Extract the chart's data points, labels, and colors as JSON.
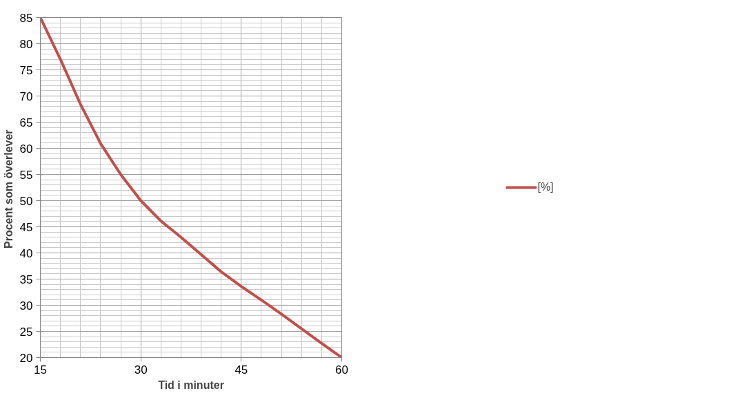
{
  "chart_data": {
    "type": "line",
    "xlabel": "Tid i minuter",
    "ylabel": "Procent  som överlever",
    "x": [
      15,
      18,
      21,
      24,
      27,
      30,
      33,
      36,
      39,
      42,
      45,
      48,
      51,
      54,
      57,
      60
    ],
    "series": [
      {
        "name": "[%]",
        "color": "#c0504d",
        "values": [
          85,
          77,
          68.4,
          60.9,
          55,
          50,
          46.1,
          43,
          39.7,
          36.4,
          33.6,
          31,
          28.3,
          25.5,
          22.7,
          20
        ]
      }
    ],
    "xlim": [
      15,
      60
    ],
    "xticks": [
      15,
      30,
      45,
      60
    ],
    "ylim": [
      20,
      85
    ],
    "yticks": [
      20,
      25,
      30,
      35,
      40,
      45,
      50,
      55,
      60,
      65,
      70,
      75,
      80,
      85
    ],
    "grid": true,
    "legend": "right",
    "marker": "none",
    "line_style": "solid"
  }
}
